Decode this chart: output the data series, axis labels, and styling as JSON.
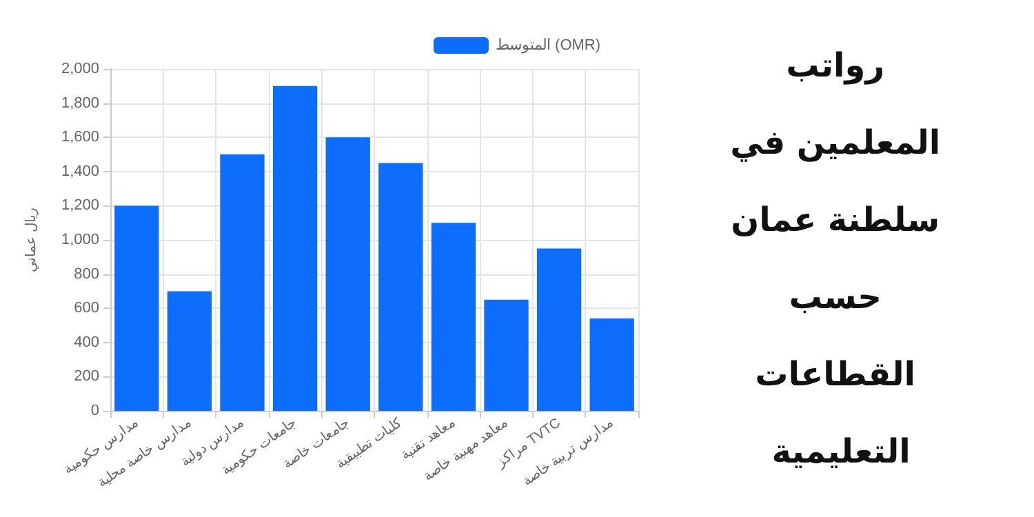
{
  "chart_data": {
    "type": "bar",
    "title": "رواتب المعلمين في سلطنة عمان حسب القطاعات التعليمية",
    "ylabel": "ريال عماني",
    "categories": [
      "مدارس حكومية",
      "مدارس خاصة محلية",
      "مدارس دولية",
      "جامعات حكومية",
      "جامعات خاصة",
      "كليات تطبيقية",
      "معاهد تقنية",
      "معاهد مهنية خاصة",
      "مراكز TVTC",
      "مدارس تربية خاصة"
    ],
    "series": [
      {
        "name": "المتوسط (OMR)",
        "color": "#0d6efd",
        "values": [
          1200,
          700,
          1500,
          1900,
          1600,
          1450,
          1100,
          650,
          950,
          540
        ]
      }
    ],
    "ylim": [
      0,
      2000
    ],
    "yticks": [
      0,
      200,
      400,
      600,
      800,
      {
        "value": 1000,
        "label": "1,000"
      },
      {
        "value": 1200,
        "label": "1,200"
      },
      {
        "value": 1400,
        "label": "1,400"
      },
      {
        "value": 1600,
        "label": "1,600"
      },
      {
        "value": 1800,
        "label": "1,800"
      },
      {
        "value": 2000,
        "label": "2,000"
      }
    ],
    "grid": true,
    "legend": "top"
  }
}
